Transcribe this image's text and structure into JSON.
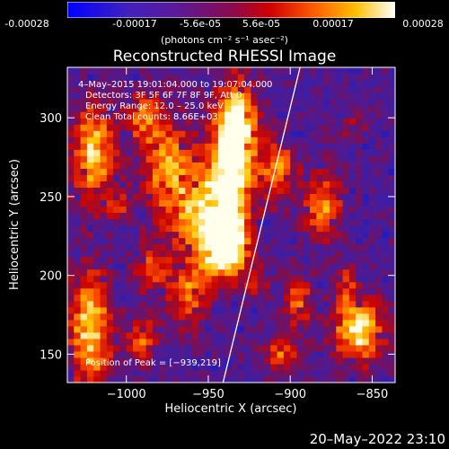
{
  "colorbar": {
    "ticks": [
      "-0.00028",
      "-0.00017",
      "-5.6e-05",
      "5.6e-05",
      "0.00017",
      "0.00028"
    ],
    "units": "(photons cm⁻² s⁻¹ asec⁻²)"
  },
  "chart_data": {
    "type": "heatmap",
    "title": "Reconstructed RHESSI Image",
    "xlabel": "Heliocentric X (arcsec)",
    "ylabel": "Heliocentric Y (arcsec)",
    "xlim": [
      -1036,
      -836
    ],
    "ylim": [
      132,
      332
    ],
    "xticks": [
      -1000,
      -950,
      -900,
      -850
    ],
    "xtick_labels": [
      "−1000",
      "−950",
      "−900",
      "−850"
    ],
    "yticks": [
      150,
      200,
      250,
      300
    ],
    "ytick_labels": [
      "150",
      "200",
      "250",
      "300"
    ],
    "color_range": [
      -0.00028,
      0.00028
    ],
    "colormap": "blue-purple-red-yellow-white",
    "annotations": [
      "4–May–2015 19:01:04.000 to 19:07:04.000",
      "Detectors: 3F 5F 6F 7F 8F 9F, Att 0",
      "Energy Range: 12.0 – 25.0 keV",
      "Clean     Total counts: 8.66E+03"
    ],
    "peak_label": "Position of Peak = [−939,219]",
    "peak": {
      "x": -939,
      "y": 219
    },
    "limb_line": [
      {
        "x": -941,
        "y": 132
      },
      {
        "x": -894,
        "y": 332
      }
    ]
  },
  "timestamp": "20–May–2022 23:10"
}
